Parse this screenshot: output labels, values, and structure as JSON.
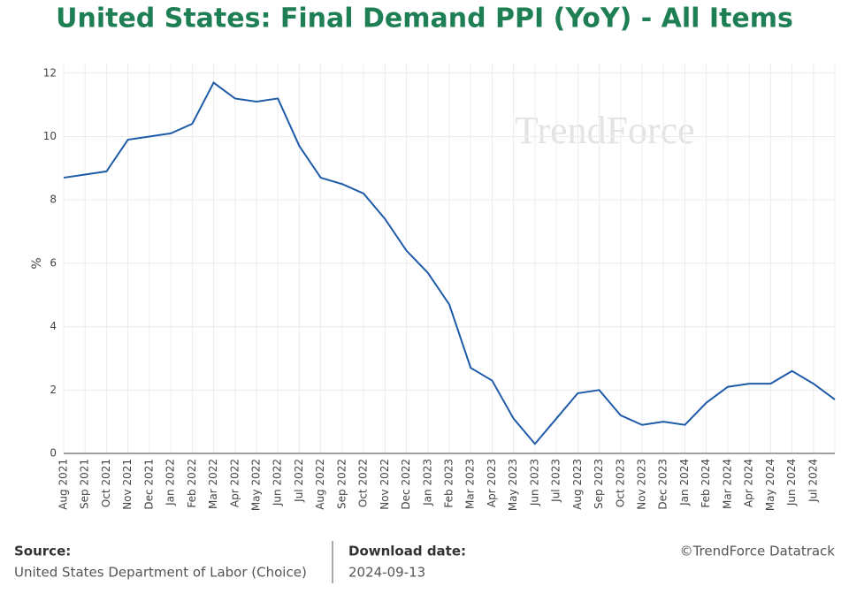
{
  "chart_data": {
    "type": "line",
    "title": "United States: Final Demand PPI (YoY) - All Items",
    "y_label": "%",
    "watermark": "TrendForce",
    "categories": [
      "Aug 2021",
      "Sep 2021",
      "Oct 2021",
      "Nov 2021",
      "Dec 2021",
      "Jan 2022",
      "Feb 2022",
      "Mar 2022",
      "Apr 2022",
      "May 2022",
      "Jun 2022",
      "Jul 2022",
      "Aug 2022",
      "Sep 2022",
      "Oct 2022",
      "Nov 2022",
      "Dec 2022",
      "Jan 2023",
      "Feb 2023",
      "Mar 2023",
      "Apr 2023",
      "May 2023",
      "Jun 2023",
      "Jul 2023",
      "Aug 2023",
      "Sep 2023",
      "Oct 2023",
      "Nov 2023",
      "Dec 2023",
      "Jan 2024",
      "Feb 2024",
      "Mar 2024",
      "Apr 2024",
      "May 2024",
      "Jun 2024",
      "Jul 2024",
      null
    ],
    "values": [
      8.7,
      8.8,
      8.9,
      9.9,
      10.0,
      10.1,
      10.4,
      11.7,
      11.2,
      11.1,
      11.2,
      9.7,
      8.7,
      8.5,
      8.2,
      7.4,
      6.4,
      5.7,
      4.7,
      2.7,
      2.3,
      1.1,
      0.3,
      1.1,
      1.9,
      2.0,
      1.2,
      0.9,
      1.0,
      0.9,
      1.6,
      2.1,
      2.2,
      2.2,
      2.6,
      2.2,
      1.7
    ],
    "color": "#1f5ba8",
    "ylim": [
      0,
      12.3
    ],
    "yticks": [
      0,
      2,
      4,
      6,
      8,
      10,
      12
    ],
    "grid": true
  },
  "footer": {
    "source_label": "Source:",
    "source": "United States Department of Labor (Choice)",
    "download_label": "Download date:",
    "download_date": "2024-09-13",
    "copyright": "©TrendForce Datatrack"
  }
}
